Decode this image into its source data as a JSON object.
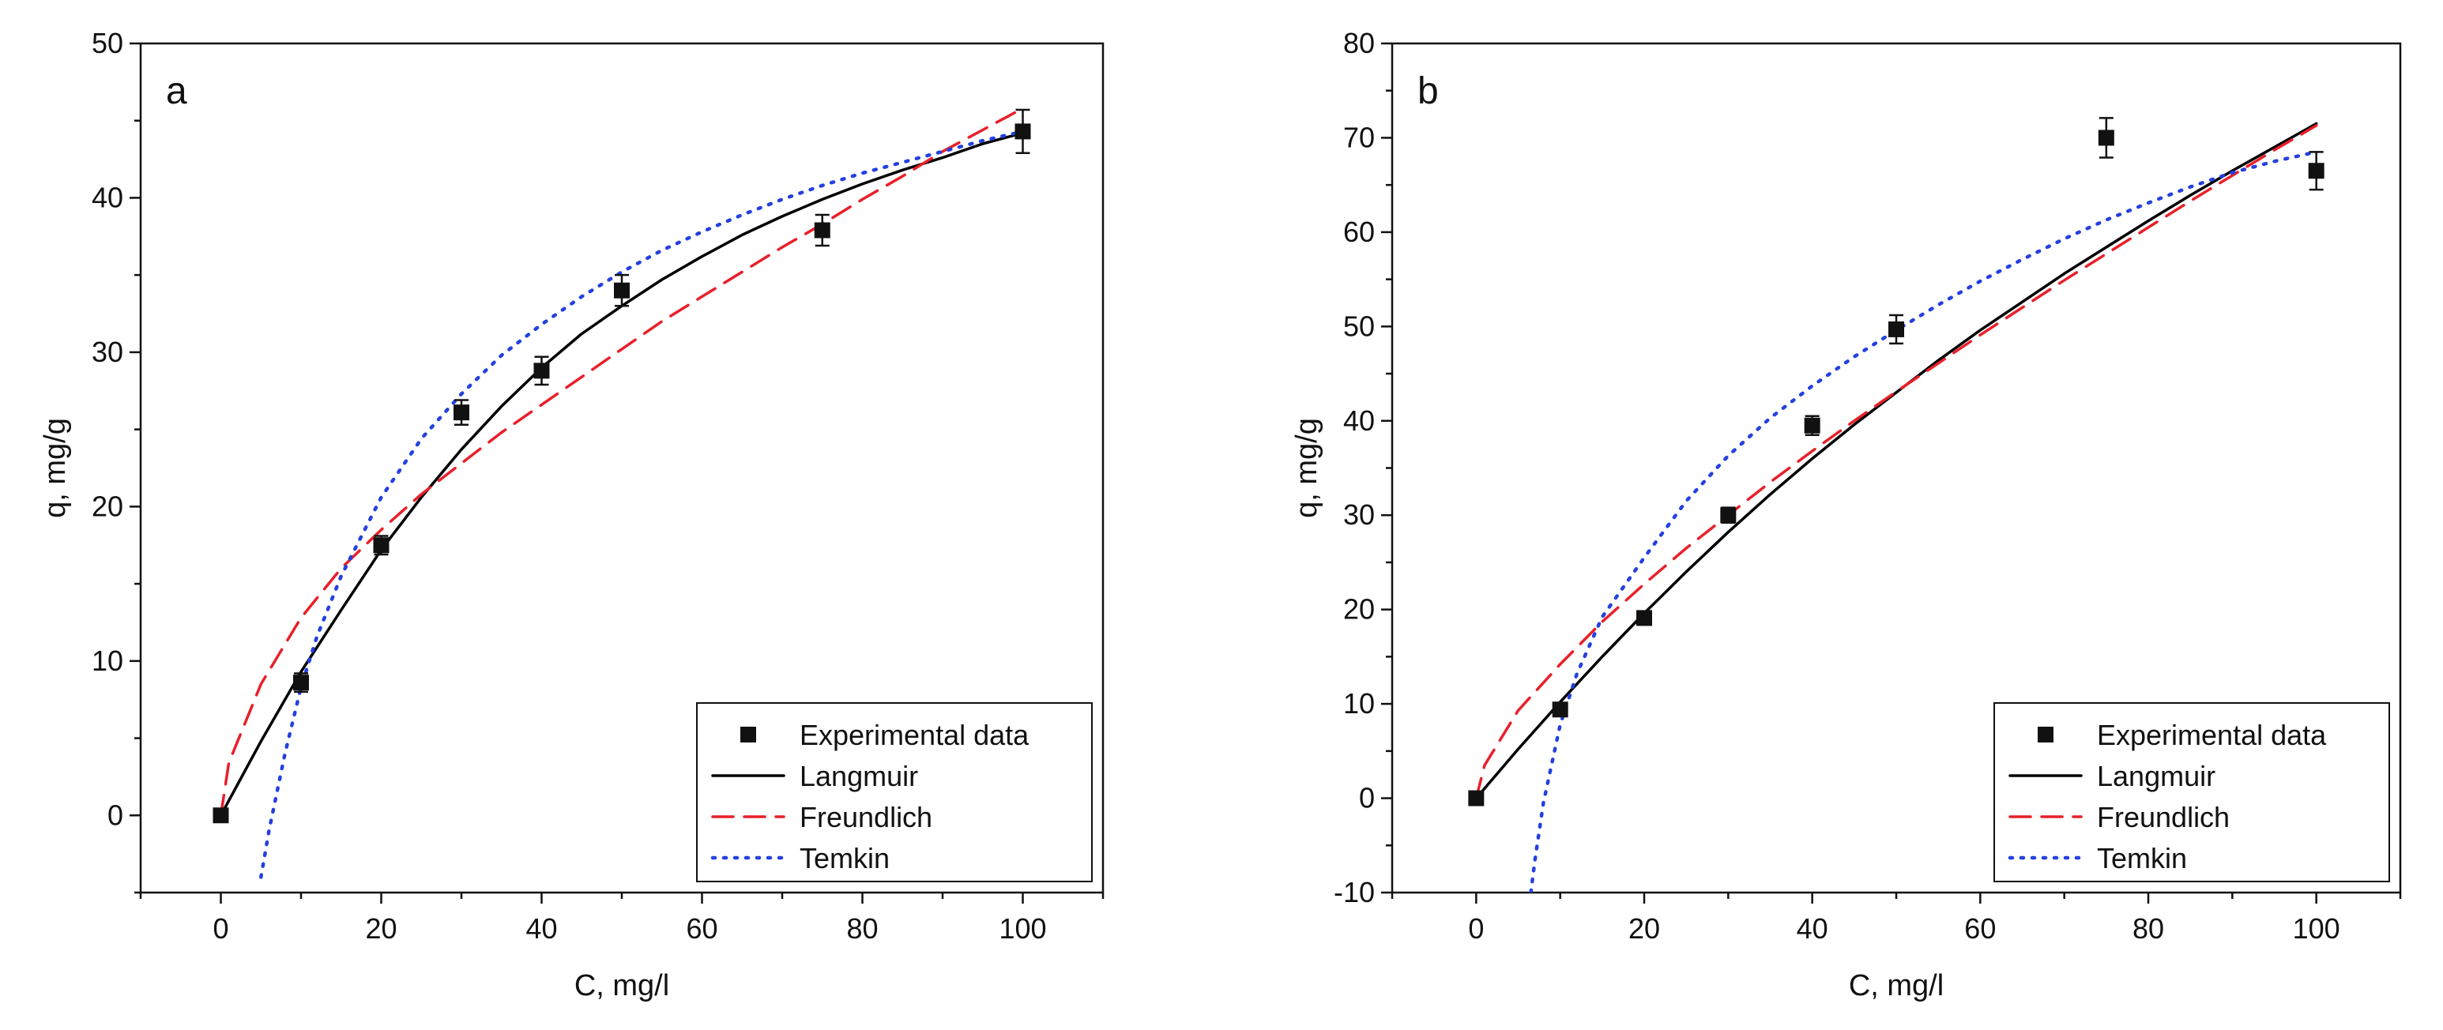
{
  "chart_data": [
    {
      "type": "scatter",
      "panel_label": "a",
      "xlabel": "C, mg/l",
      "ylabel": "q, mg/g",
      "xlim": [
        -10,
        110
      ],
      "ylim": [
        -5,
        50
      ],
      "xticks": [
        0,
        20,
        40,
        60,
        80,
        100
      ],
      "yticks": [
        0,
        10,
        20,
        30,
        40,
        50
      ],
      "legend_position": "bottom-right",
      "series": [
        {
          "name": "Experimental data",
          "kind": "markers",
          "color": "#000000",
          "x": [
            0,
            10,
            20,
            30,
            40,
            50,
            75,
            100
          ],
          "y": [
            0,
            8.6,
            17.5,
            26.1,
            28.8,
            34.0,
            37.9,
            44.3
          ],
          "err": [
            0.4,
            0.6,
            0.6,
            0.8,
            0.9,
            1.0,
            1.0,
            1.4
          ]
        },
        {
          "name": "Langmuir",
          "kind": "curve",
          "color": "#000000",
          "dash": "solid",
          "x": [
            0,
            5,
            10,
            15,
            20,
            25,
            30,
            35,
            40,
            45,
            50,
            55,
            60,
            65,
            70,
            75,
            80,
            85,
            90,
            95,
            100
          ],
          "y": [
            0,
            4.8,
            9.3,
            13.3,
            17.2,
            20.6,
            23.7,
            26.5,
            29.0,
            31.2,
            33.0,
            34.7,
            36.2,
            37.6,
            38.8,
            39.9,
            40.9,
            41.8,
            42.6,
            43.5,
            44.2
          ]
        },
        {
          "name": "Freundlich",
          "kind": "curve",
          "color": "#e8202a",
          "dash": "dashed",
          "x": [
            0,
            1,
            5,
            10,
            15,
            20,
            25,
            30,
            35,
            40,
            45,
            50,
            55,
            60,
            65,
            70,
            75,
            80,
            85,
            90,
            95,
            100
          ],
          "y": [
            0,
            3.4,
            8.5,
            12.8,
            16.0,
            18.5,
            20.8,
            22.8,
            24.8,
            26.6,
            28.4,
            30.2,
            32.0,
            33.6,
            35.2,
            36.8,
            38.3,
            39.9,
            41.4,
            43.0,
            44.4,
            45.8
          ]
        },
        {
          "name": "Temkin",
          "kind": "curve",
          "color": "#2440e0",
          "dash": "dotted",
          "x": [
            5,
            6,
            8,
            10,
            12,
            15,
            20,
            25,
            30,
            35,
            40,
            45,
            50,
            55,
            60,
            65,
            70,
            75,
            80,
            85,
            90,
            95,
            100
          ],
          "y": [
            -4.0,
            -1.0,
            4.0,
            8.3,
            11.6,
            15.5,
            20.6,
            24.4,
            27.3,
            29.8,
            31.8,
            33.6,
            35.2,
            36.6,
            37.8,
            38.9,
            39.9,
            40.8,
            41.6,
            42.3,
            43.0,
            43.7,
            44.3
          ]
        }
      ]
    },
    {
      "type": "scatter",
      "panel_label": "b",
      "xlabel": "C, mg/l",
      "ylabel": "q, mg/g",
      "xlim": [
        -10,
        110
      ],
      "ylim": [
        -10,
        80
      ],
      "xticks": [
        0,
        20,
        40,
        60,
        80,
        100
      ],
      "yticks": [
        -10,
        0,
        10,
        20,
        30,
        40,
        50,
        60,
        70,
        80
      ],
      "legend_position": "bottom-right",
      "series": [
        {
          "name": "Experimental data",
          "kind": "markers",
          "color": "#000000",
          "x": [
            0,
            10,
            20,
            30,
            40,
            50,
            75,
            100
          ],
          "y": [
            0,
            9.4,
            19.1,
            30.0,
            39.5,
            49.7,
            70.0,
            66.5
          ],
          "err": [
            0.4,
            0.6,
            0.6,
            0.8,
            1.0,
            1.5,
            2.1,
            2.0
          ]
        },
        {
          "name": "Langmuir",
          "kind": "curve",
          "color": "#000000",
          "dash": "solid",
          "x": [
            0,
            5,
            10,
            15,
            20,
            25,
            30,
            35,
            40,
            45,
            50,
            55,
            60,
            65,
            70,
            75,
            80,
            85,
            90,
            95,
            100
          ],
          "y": [
            0,
            5.2,
            10.2,
            15.0,
            19.6,
            24.0,
            28.2,
            32.2,
            36.0,
            39.6,
            43.0,
            46.4,
            49.6,
            52.6,
            55.6,
            58.4,
            61.2,
            63.9,
            66.5,
            69.0,
            71.5
          ]
        },
        {
          "name": "Freundlich",
          "kind": "curve",
          "color": "#e8202a",
          "dash": "dashed",
          "x": [
            0,
            1,
            5,
            10,
            15,
            20,
            25,
            30,
            35,
            40,
            45,
            50,
            55,
            60,
            65,
            70,
            75,
            80,
            85,
            90,
            95,
            100
          ],
          "y": [
            0,
            3.5,
            9.3,
            14.2,
            18.7,
            22.7,
            26.5,
            30.0,
            33.5,
            36.8,
            40.0,
            43.1,
            46.1,
            49.1,
            52.0,
            54.9,
            57.7,
            60.5,
            63.3,
            66.0,
            68.7,
            71.3
          ]
        },
        {
          "name": "Temkin",
          "kind": "curve",
          "color": "#2440e0",
          "dash": "dotted",
          "x": [
            6.5,
            7,
            8,
            10,
            12,
            15,
            20,
            25,
            30,
            35,
            40,
            45,
            50,
            55,
            60,
            65,
            70,
            75,
            80,
            85,
            90,
            95,
            100
          ],
          "y": [
            -10,
            -6.5,
            -0.5,
            7.8,
            13.2,
            19.2,
            25.5,
            31.5,
            36.3,
            40.3,
            43.7,
            46.8,
            49.6,
            52.3,
            54.8,
            57.1,
            59.3,
            61.3,
            63.1,
            64.8,
            66.3,
            67.5,
            68.5
          ]
        }
      ]
    }
  ]
}
